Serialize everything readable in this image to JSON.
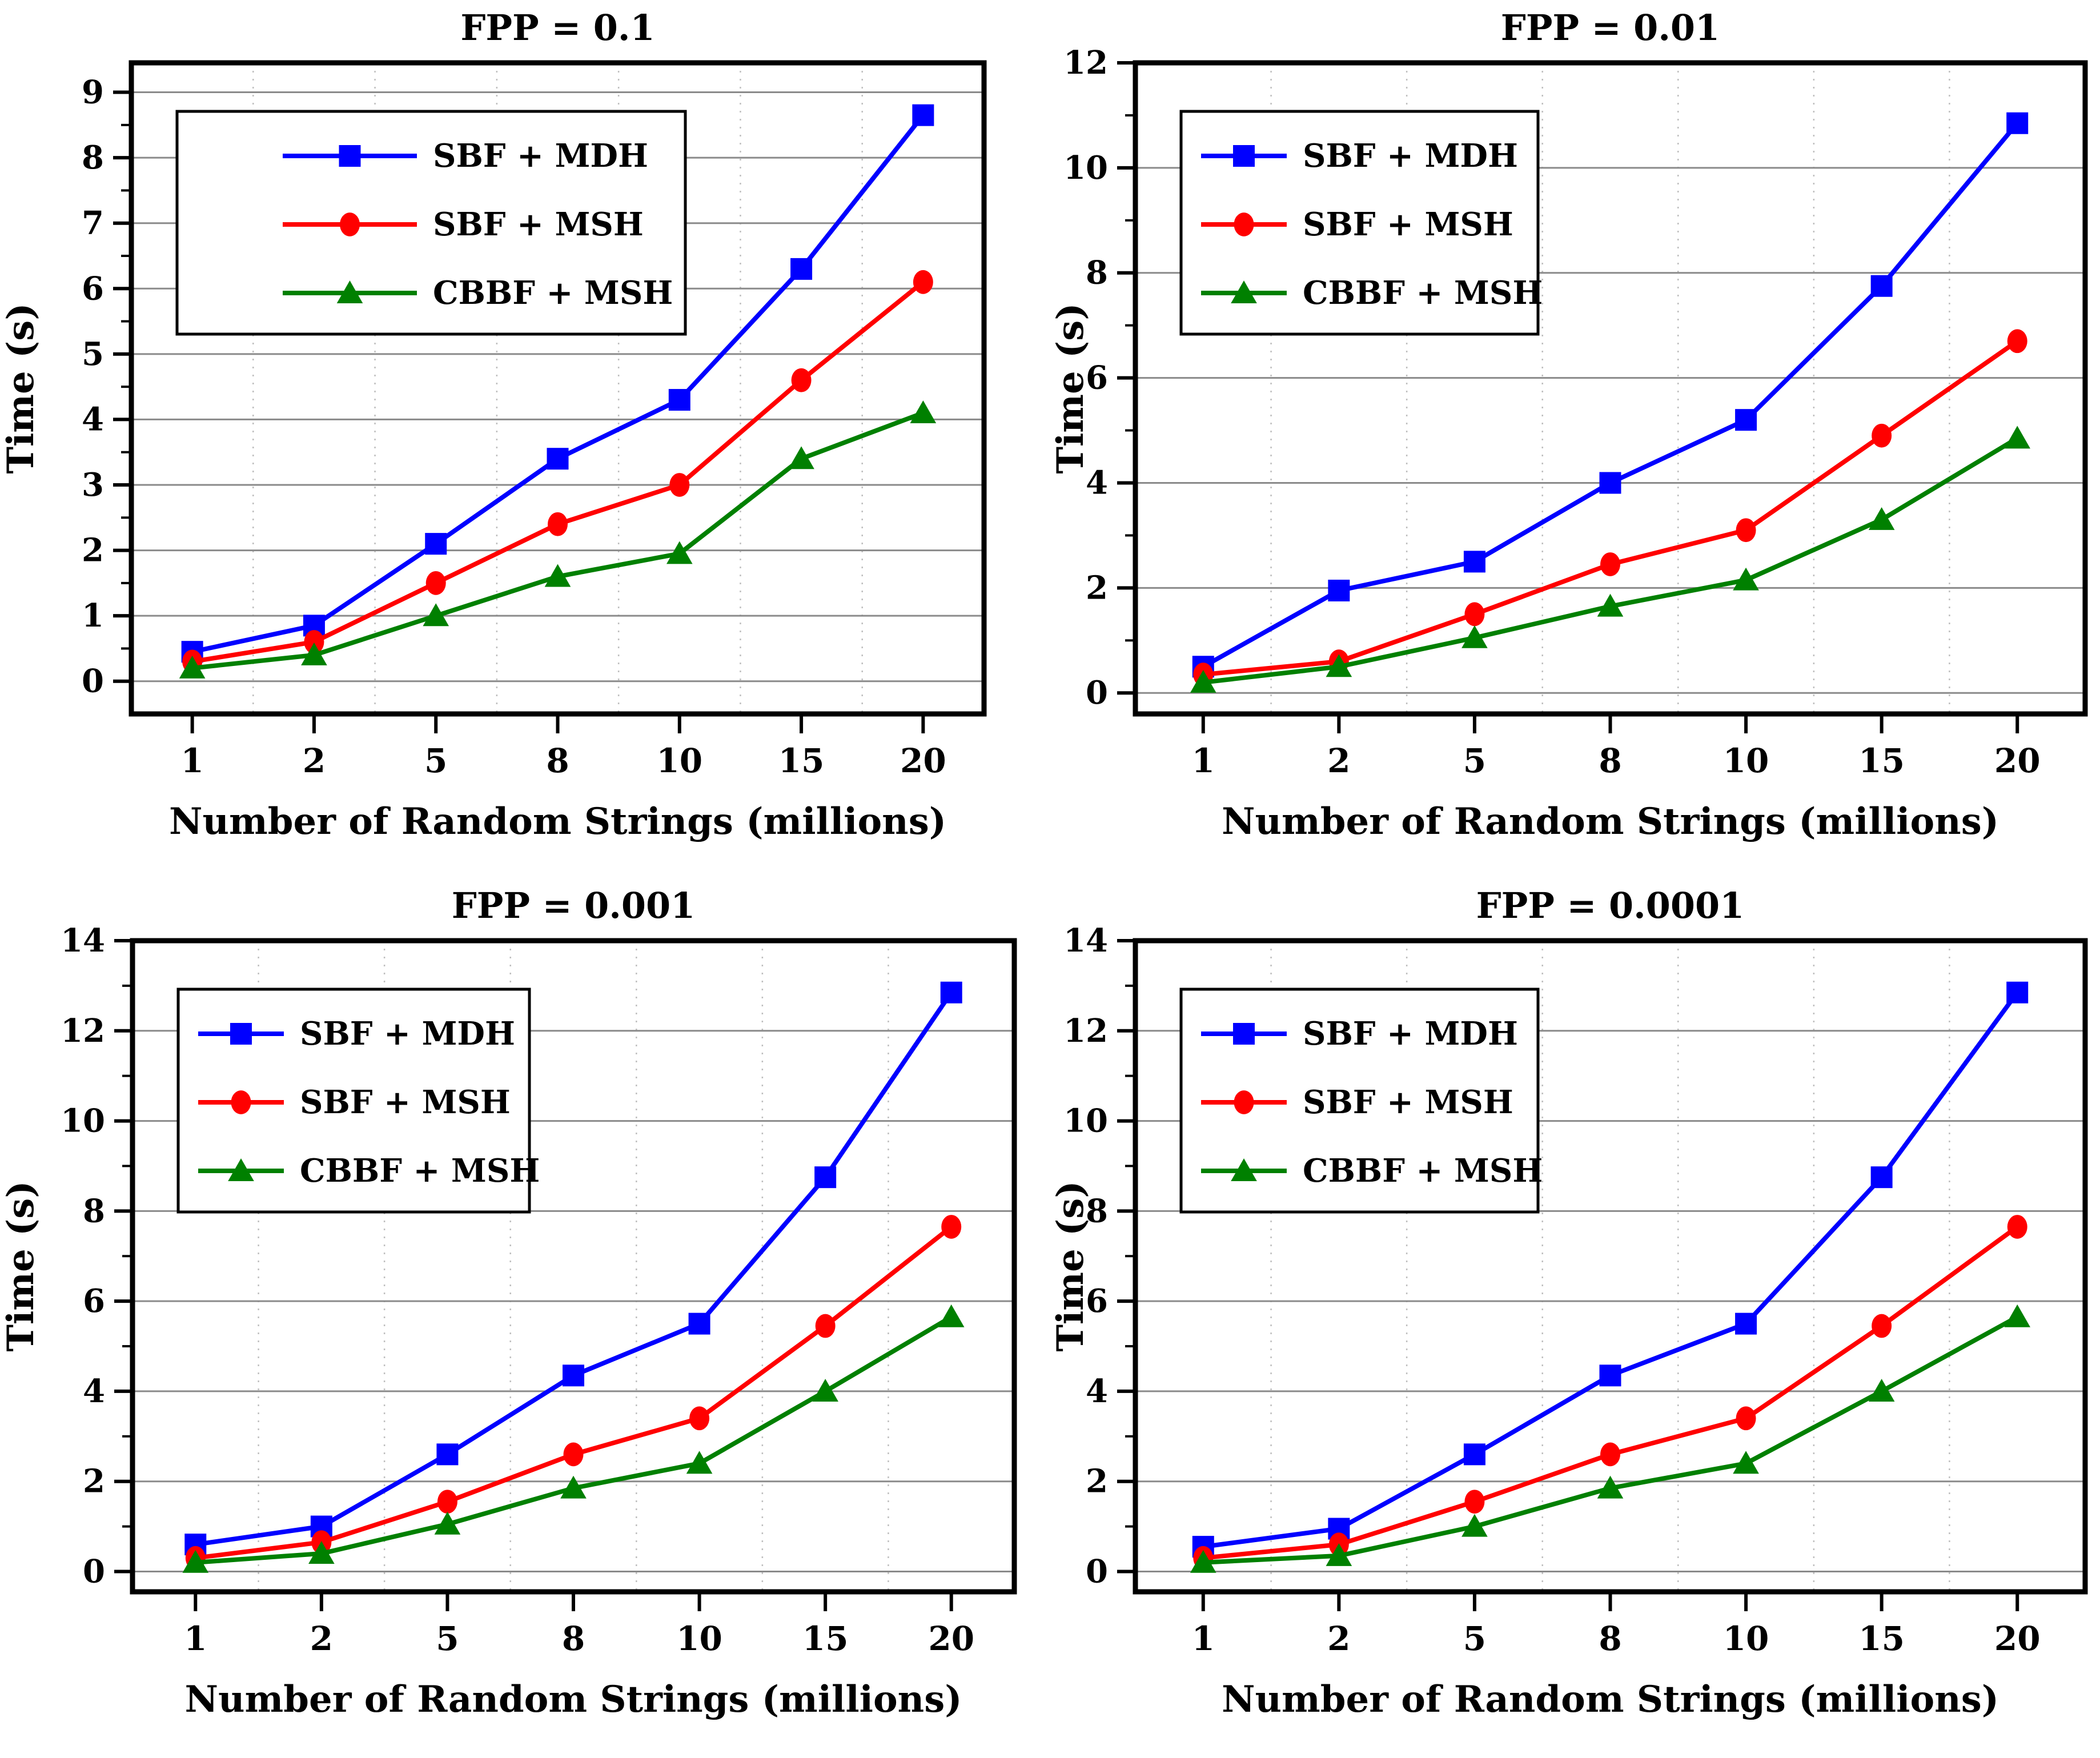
{
  "figure": {
    "background": "#ffffff",
    "text_color": "#000000",
    "grid_color": "#8a8a8a",
    "minor_grid_color": "#bfbfbf",
    "frame_color": "#000000"
  },
  "chart_data": [
    {
      "type": "line",
      "title": "FPP = 0.1",
      "xlabel": "Number of Random Strings (millions)",
      "ylabel": "Time (s)",
      "categories": [
        "1",
        "2",
        "5",
        "8",
        "10",
        "15",
        "20"
      ],
      "yticks": [
        0,
        1,
        2,
        3,
        4,
        5,
        6,
        7,
        8,
        9
      ],
      "ylim": [
        -0.5,
        9.45
      ],
      "grid": "horizontal-solid, vertical-dotted-between-categories",
      "legend_position": "top-left",
      "series": [
        {
          "name": "SBF + MDH",
          "color": "#0000ff",
          "marker": "square",
          "values": [
            0.45,
            0.85,
            2.1,
            3.4,
            4.3,
            6.3,
            8.65
          ]
        },
        {
          "name": "SBF + MSH",
          "color": "#ff0000",
          "marker": "circle",
          "values": [
            0.3,
            0.6,
            1.5,
            2.4,
            3.0,
            4.6,
            6.1
          ]
        },
        {
          "name": "CBBF + MSH",
          "color": "#008000",
          "marker": "triangle",
          "values": [
            0.2,
            0.4,
            1.0,
            1.6,
            1.95,
            3.4,
            4.1
          ]
        }
      ]
    },
    {
      "type": "line",
      "title": "FPP = 0.01",
      "xlabel": "Number of Random Strings (millions)",
      "ylabel": "Time (s)",
      "categories": [
        "1",
        "2",
        "5",
        "8",
        "10",
        "15",
        "20"
      ],
      "yticks": [
        0,
        2,
        4,
        6,
        8,
        10,
        12
      ],
      "ylim": [
        -0.4,
        12
      ],
      "grid": "horizontal-solid, vertical-dotted-between-categories",
      "legend_position": "top-left",
      "series": [
        {
          "name": "SBF + MDH",
          "color": "#0000ff",
          "marker": "square",
          "values": [
            0.5,
            1.95,
            2.5,
            4.0,
            5.2,
            7.75,
            10.85
          ]
        },
        {
          "name": "SBF + MSH",
          "color": "#ff0000",
          "marker": "circle",
          "values": [
            0.35,
            0.6,
            1.5,
            2.45,
            3.1,
            4.9,
            6.7
          ]
        },
        {
          "name": "CBBF + MSH",
          "color": "#008000",
          "marker": "triangle",
          "values": [
            0.2,
            0.5,
            1.05,
            1.65,
            2.15,
            3.3,
            4.85
          ]
        }
      ]
    },
    {
      "type": "line",
      "title": "FPP = 0.001",
      "xlabel": "Number of Random Strings (millions)",
      "ylabel": "Time (s)",
      "categories": [
        "1",
        "2",
        "5",
        "8",
        "10",
        "15",
        "20"
      ],
      "yticks": [
        0,
        2,
        4,
        6,
        8,
        10,
        12,
        14
      ],
      "ylim": [
        -0.45,
        14
      ],
      "grid": "horizontal-solid, vertical-dotted-between-categories",
      "legend_position": "top-left",
      "series": [
        {
          "name": "SBF + MDH",
          "color": "#0000ff",
          "marker": "square",
          "values": [
            0.6,
            1.0,
            2.6,
            4.35,
            5.5,
            8.75,
            12.85
          ]
        },
        {
          "name": "SBF + MSH",
          "color": "#ff0000",
          "marker": "circle",
          "values": [
            0.3,
            0.65,
            1.55,
            2.6,
            3.4,
            5.45,
            7.65
          ]
        },
        {
          "name": "CBBF + MSH",
          "color": "#008000",
          "marker": "triangle",
          "values": [
            0.2,
            0.4,
            1.05,
            1.85,
            2.4,
            4.0,
            5.65
          ]
        }
      ]
    },
    {
      "type": "line",
      "title": "FPP = 0.0001",
      "xlabel": "Number of Random Strings (millions)",
      "ylabel": "Time (s)",
      "categories": [
        "1",
        "2",
        "5",
        "8",
        "10",
        "15",
        "20"
      ],
      "yticks": [
        0,
        2,
        4,
        6,
        8,
        10,
        12,
        14
      ],
      "ylim": [
        -0.45,
        14
      ],
      "grid": "horizontal-solid, vertical-dotted-between-categories",
      "legend_position": "top-left",
      "series": [
        {
          "name": "SBF + MDH",
          "color": "#0000ff",
          "marker": "square",
          "values": [
            0.55,
            0.95,
            2.6,
            4.35,
            5.5,
            8.75,
            12.85
          ]
        },
        {
          "name": "SBF + MSH",
          "color": "#ff0000",
          "marker": "circle",
          "values": [
            0.3,
            0.6,
            1.55,
            2.6,
            3.4,
            5.45,
            7.65
          ]
        },
        {
          "name": "CBBF + MSH",
          "color": "#008000",
          "marker": "triangle",
          "values": [
            0.2,
            0.35,
            1.0,
            1.85,
            2.4,
            4.0,
            5.65
          ]
        }
      ]
    }
  ]
}
